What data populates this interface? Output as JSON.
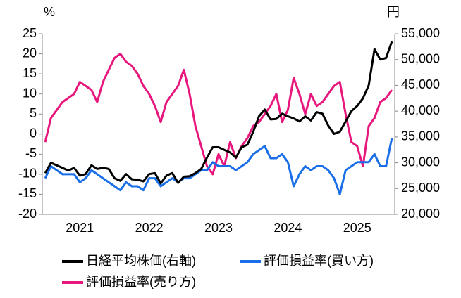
{
  "chart_data": {
    "type": "line",
    "y_unit_label": "%",
    "y2_unit_label": "円",
    "categories": [
      null,
      null,
      null,
      null,
      null,
      null,
      "2021",
      null,
      null,
      null,
      null,
      null,
      null,
      null,
      null,
      null,
      null,
      null,
      "2022",
      null,
      null,
      null,
      null,
      null,
      null,
      null,
      null,
      null,
      null,
      null,
      "2023",
      null,
      null,
      null,
      null,
      null,
      null,
      null,
      null,
      null,
      null,
      null,
      "2024",
      null,
      null,
      null,
      null,
      null,
      null,
      null,
      null,
      null,
      null,
      null,
      "2025",
      null,
      null,
      null,
      null,
      null,
      null
    ],
    "ylim": [
      -20,
      25
    ],
    "yticks": [
      -20,
      -15,
      -10,
      -5,
      0,
      5,
      10,
      15,
      20,
      25
    ],
    "y2lim": [
      20000,
      55000
    ],
    "y2ticks": [
      {
        "value": 20000,
        "label": "20,000"
      },
      {
        "value": 25000,
        "label": "25,000"
      },
      {
        "value": 30000,
        "label": "30,000"
      },
      {
        "value": 35000,
        "label": "35,000"
      },
      {
        "value": 40000,
        "label": "40,000"
      },
      {
        "value": 45000,
        "label": "45,000"
      },
      {
        "value": 50000,
        "label": "50,000"
      },
      {
        "value": 55000,
        "label": "55,000"
      }
    ],
    "series": [
      {
        "name": "評価損益率(売り方)",
        "color": "#e8177d",
        "values": [
          -2,
          4,
          6,
          8,
          9,
          10,
          13,
          12,
          11,
          8,
          13,
          16,
          19,
          20,
          18,
          17,
          15,
          12,
          10,
          7,
          3,
          8,
          10,
          12,
          16,
          10,
          2,
          -3,
          -8,
          -10,
          -5,
          -8,
          -2,
          -6,
          -3,
          -1,
          2,
          3,
          5,
          7,
          10,
          3,
          6,
          14,
          10,
          5,
          10,
          7,
          8,
          10,
          12,
          13,
          5,
          -2,
          -3,
          -8,
          2,
          4,
          8,
          9,
          11
        ]
      },
      {
        "name": "評価損益率(買い方)",
        "color": "#1a6fe8",
        "values": [
          -11,
          -8,
          -9,
          -10,
          -10,
          -10,
          -12,
          -11,
          -9,
          -10,
          -11,
          -12,
          -13,
          -14,
          -12,
          -13,
          -13,
          -14,
          -11,
          -11,
          -13,
          -12,
          -11,
          -12,
          -11,
          -11,
          -10,
          -9,
          -9,
          -7,
          -8,
          -8,
          -8,
          -9,
          -8,
          -7,
          -5,
          -4,
          -3,
          -6,
          -6,
          -5,
          -7,
          -13,
          -10,
          -8,
          -9,
          -8,
          -8,
          -9,
          -11,
          -15,
          -9,
          -8,
          -7,
          -7,
          -7,
          -5,
          -8,
          -8,
          -1
        ]
      },
      {
        "name": "日経平均株価(右軸)",
        "color": "#000000",
        "axis": "y2",
        "values": [
          28000,
          30000,
          29500,
          29000,
          28500,
          29000,
          27500,
          27800,
          29500,
          28800,
          29000,
          28800,
          27000,
          26500,
          27800,
          26800,
          26700,
          26400,
          27800,
          28000,
          26000,
          27500,
          28000,
          26100,
          27300,
          27400,
          28000,
          28800,
          31000,
          33000,
          33000,
          32500,
          32000,
          31000,
          33000,
          33500,
          36000,
          39000,
          40300,
          38400,
          38500,
          39500,
          39000,
          38600,
          38000,
          39000,
          38200,
          39800,
          39500,
          37200,
          35600,
          36000,
          38000,
          40000,
          41000,
          42500,
          45000,
          52000,
          50000,
          50300,
          53500
        ]
      }
    ],
    "legend_order": [
      2,
      1,
      0
    ]
  }
}
